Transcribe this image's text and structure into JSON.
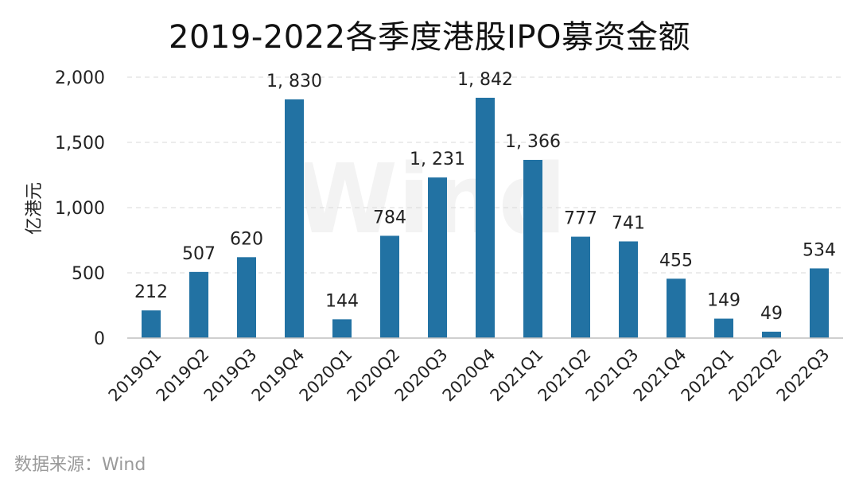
{
  "chart_data": {
    "type": "bar",
    "title": "2019-2022各季度港股IPO募资金额",
    "ylabel": "亿港元",
    "xlabel": "",
    "ylim": [
      0,
      2000
    ],
    "y_ticks": [
      0,
      500,
      1000,
      1500,
      2000
    ],
    "y_tick_labels": [
      "0",
      "500",
      "1,000",
      "1,500",
      "2,000"
    ],
    "grid": true,
    "categories": [
      "2019Q1",
      "2019Q2",
      "2019Q3",
      "2019Q4",
      "2020Q1",
      "2020Q2",
      "2020Q3",
      "2020Q4",
      "2021Q1",
      "2021Q2",
      "2021Q3",
      "2021Q4",
      "2022Q1",
      "2022Q2",
      "2022Q3"
    ],
    "values": [
      212,
      507,
      620,
      1830,
      144,
      784,
      1231,
      1842,
      1366,
      777,
      741,
      455,
      149,
      49,
      534
    ],
    "value_labels": [
      "212",
      "507",
      "620",
      "1, 830",
      "144",
      "784",
      "1, 231",
      "1, 842",
      "1, 366",
      "777",
      "741",
      "455",
      "149",
      "49",
      "534"
    ],
    "bar_color": "#2272a3",
    "grid_color": "#d9d9d9",
    "watermark": "Wind"
  },
  "source_text": "数据来源：Wind"
}
